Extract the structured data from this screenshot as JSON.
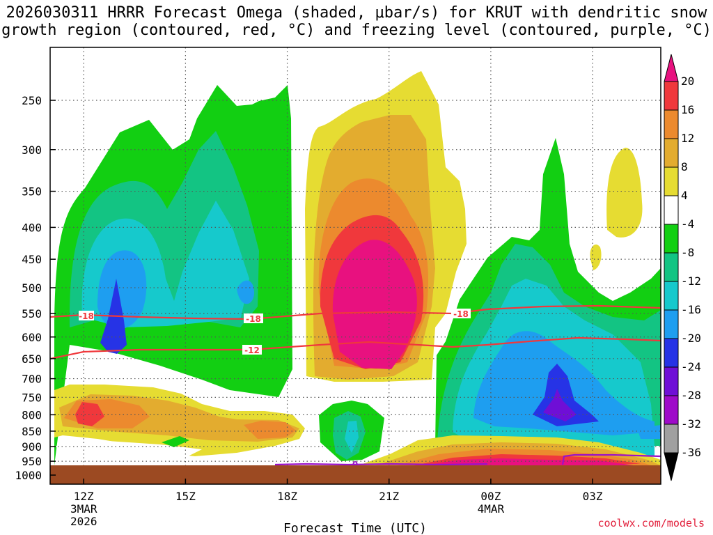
{
  "chart_data": {
    "type": "heatmap",
    "title_line1": "2026030311 HRRR Forecast Omega (shaded, μbar/s) for KRUT with dendritic snow",
    "title_line2": "growth region (contoured, red, °C) and freezing level (contoured, purple, °C)",
    "xlabel": "Forecast Time (UTC)",
    "ylabel": "",
    "credit": "coolwx.com/models",
    "x_ticks": [
      {
        "hour": 12,
        "label": "12Z",
        "sub1": "3MAR",
        "sub2": "2026"
      },
      {
        "hour": 15,
        "label": "15Z",
        "sub1": "",
        "sub2": ""
      },
      {
        "hour": 18,
        "label": "18Z",
        "sub1": "",
        "sub2": ""
      },
      {
        "hour": 21,
        "label": "21Z",
        "sub1": "",
        "sub2": ""
      },
      {
        "hour": 24,
        "label": "00Z",
        "sub1": "4MAR",
        "sub2": ""
      },
      {
        "hour": 27,
        "label": "03Z",
        "sub1": "",
        "sub2": ""
      }
    ],
    "xlim": [
      11,
      29
    ],
    "y_ticks": [
      250,
      300,
      350,
      400,
      450,
      500,
      550,
      600,
      650,
      700,
      750,
      800,
      850,
      900,
      950,
      1000
    ],
    "colorbar": {
      "labels": [
        "20",
        "16",
        "12",
        "8",
        "4",
        "-4",
        "-8",
        "-12",
        "-16",
        "-20",
        "-24",
        "-28",
        "-32",
        "-36"
      ],
      "colors": [
        "#e8117f",
        "#f0383c",
        "#ec8a2e",
        "#e3ac2f",
        "#e6dc32",
        "#ffffff",
        "#12cf12",
        "#13c483",
        "#16c9cc",
        "#1e9ef0",
        "#2633e6",
        "#6f0fd6",
        "#9e0bc9",
        "#a0a0a0",
        "#000000"
      ]
    },
    "contours": {
      "dgz_minus18": {
        "label": "-18",
        "color": "#f0383c"
      },
      "dgz_minus12": {
        "label": "-12",
        "color": "#f0383c"
      },
      "freezing_0": {
        "label": "0",
        "color": "#9a12c8"
      }
    },
    "terrain_color": "#9c4a22"
  }
}
